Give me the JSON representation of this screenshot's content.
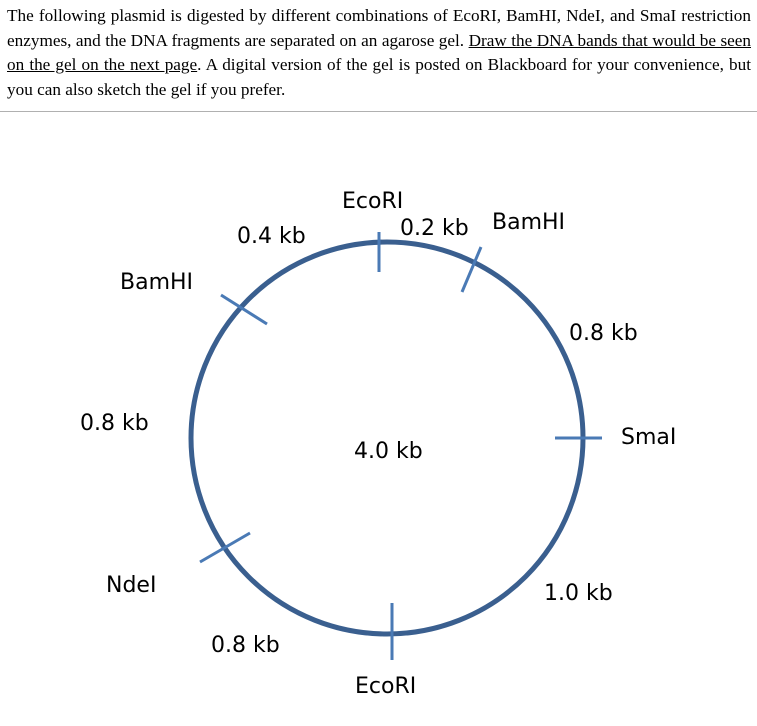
{
  "instructions": {
    "part1": "The following plasmid is digested by different combinations of EcoRI, BamHI, NdeI, and SmaI restriction enzymes, and the DNA fragments are separated on an agarose gel. ",
    "underlined": "Draw the DNA bands that would be seen on the gel on the next page",
    "part2": ". A digital version of the gel is posted on Blackboard for your convenience, but you can also sketch the gel if you prefer."
  },
  "plasmid": {
    "total_size": "4.0 kb",
    "colors": {
      "ring": "#3a5f8f",
      "ticks": "#4a7ab5"
    },
    "sites": [
      {
        "enzyme": "EcoRI"
      },
      {
        "enzyme": "BamHI"
      },
      {
        "enzyme": "SmaI"
      },
      {
        "enzyme": "EcoRI"
      },
      {
        "enzyme": "NdeI"
      },
      {
        "enzyme": "BamHI"
      }
    ],
    "fragments": [
      {
        "label": "0.2 kb"
      },
      {
        "label": "0.8 kb"
      },
      {
        "label": "1.0 kb"
      },
      {
        "label": "0.8 kb"
      },
      {
        "label": "0.8 kb"
      },
      {
        "label": "0.4 kb"
      }
    ]
  }
}
